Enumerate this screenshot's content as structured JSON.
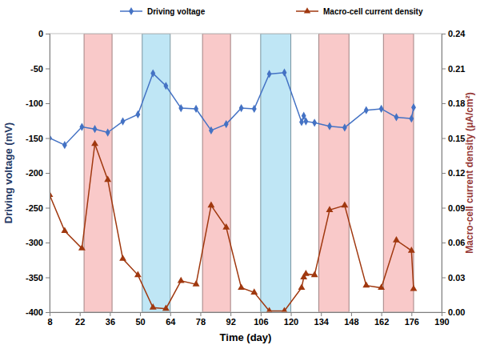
{
  "chart_data": {
    "type": "line",
    "x_label": "Time (day)",
    "y_label": "Driving voltage (mV)",
    "y2_label": "Macro-cell current density (μA/cm²)",
    "x": [
      8,
      15,
      23,
      29,
      35,
      42,
      49,
      56,
      62,
      69,
      76,
      83,
      90,
      97,
      103,
      110,
      117,
      125,
      126,
      127,
      131,
      138,
      145,
      155,
      162,
      169,
      176,
      177
    ],
    "series": [
      {
        "name": "Driving voltage",
        "color": "#4472c4",
        "marker": "diamond",
        "axis": "y",
        "values": [
          -150,
          -160,
          -134,
          -137,
          -142,
          -126,
          -116,
          -57,
          -75,
          -107,
          -108,
          -139,
          -130,
          -107,
          -108,
          -58,
          -56,
          -127,
          -118,
          -126,
          -128,
          -133,
          -135,
          -110,
          -108,
          -120,
          -122,
          -106
        ]
      },
      {
        "name": "Macro-cell current density",
        "color": "#a0380f",
        "marker": "triangle",
        "axis": "y2",
        "values": [
          0.101,
          0.07,
          0.055,
          0.145,
          0.114,
          0.046,
          0.032,
          0.004,
          0.003,
          0.027,
          0.024,
          0.092,
          0.073,
          0.021,
          0.017,
          0.001,
          0.001,
          0.021,
          0.03,
          0.033,
          0.032,
          0.088,
          0.092,
          0.023,
          0.021,
          0.062,
          0.053,
          0.02
        ]
      }
    ],
    "bands": [
      {
        "x0": 24,
        "x1": 37,
        "color": "#f9c9c9"
      },
      {
        "x0": 51,
        "x1": 64,
        "color": "#bfe6f5"
      },
      {
        "x0": 79,
        "x1": 92,
        "color": "#f9c9c9"
      },
      {
        "x0": 106,
        "x1": 120,
        "color": "#bfe6f5"
      },
      {
        "x0": 133,
        "x1": 147,
        "color": "#f9c9c9"
      },
      {
        "x0": 163,
        "x1": 177,
        "color": "#f9c9c9"
      }
    ],
    "xlim": [
      8,
      190
    ],
    "xticks": [
      8,
      22,
      36,
      50,
      64,
      78,
      92,
      106,
      120,
      134,
      148,
      162,
      176,
      190
    ],
    "ylim": [
      -400,
      0
    ],
    "yticks": [
      -400,
      -350,
      -300,
      -250,
      -200,
      -150,
      -100,
      -50,
      0
    ],
    "y2lim": [
      0,
      0.24
    ],
    "y2ticks": [
      {
        "value": 0,
        "label": "0.00"
      },
      0.03,
      0.06,
      0.09,
      0.12,
      0.15,
      0.18,
      0.21,
      0.24
    ],
    "grid": false,
    "legend": "top"
  }
}
